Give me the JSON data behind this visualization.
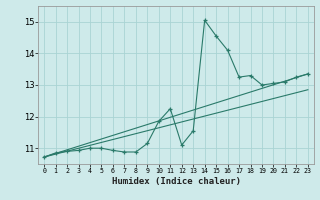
{
  "xlabel": "Humidex (Indice chaleur)",
  "bg_color": "#ceeaea",
  "grid_color": "#aad4d4",
  "line_color": "#2a7a6a",
  "xlim": [
    -0.5,
    23.5
  ],
  "ylim": [
    10.5,
    15.5
  ],
  "yticks": [
    11,
    12,
    13,
    14,
    15
  ],
  "xticks": [
    0,
    1,
    2,
    3,
    4,
    5,
    6,
    7,
    8,
    9,
    10,
    11,
    12,
    13,
    14,
    15,
    16,
    17,
    18,
    19,
    20,
    21,
    22,
    23
  ],
  "series1_x": [
    0,
    1,
    2,
    3,
    4,
    5,
    6,
    7,
    8,
    9,
    10,
    11,
    12,
    13,
    14,
    15,
    16,
    17,
    18,
    19,
    20,
    21,
    22,
    23
  ],
  "series1_y": [
    10.72,
    10.85,
    10.9,
    10.93,
    11.0,
    11.0,
    10.93,
    10.88,
    10.88,
    11.15,
    11.85,
    12.25,
    11.1,
    11.55,
    15.05,
    14.55,
    14.1,
    13.25,
    13.3,
    13.0,
    13.05,
    13.1,
    13.25,
    13.35
  ],
  "regline1_x": [
    0,
    23
  ],
  "regline1_y": [
    10.72,
    13.35
  ],
  "regline2_x": [
    0,
    23
  ],
  "regline2_y": [
    10.72,
    12.85
  ]
}
